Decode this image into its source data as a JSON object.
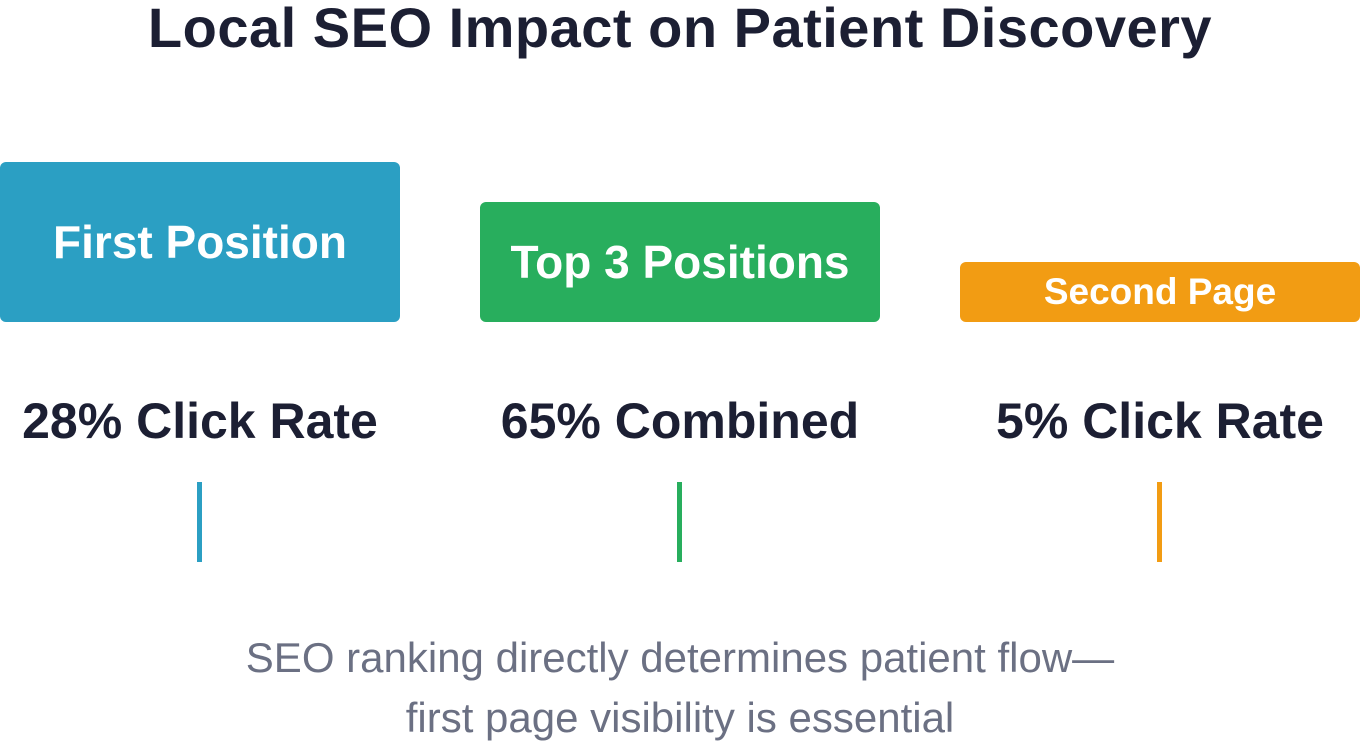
{
  "title": "Local SEO Impact on Patient Discovery",
  "tiers": [
    {
      "label": "First Position",
      "stat": "28% Click Rate",
      "color": "#2b9fc3"
    },
    {
      "label": "Top 3 Positions",
      "stat": "65% Combined",
      "color": "#28ae5d"
    },
    {
      "label": "Second Page",
      "stat": "5% Click Rate",
      "color": "#f29c13"
    }
  ],
  "caption": {
    "line1": "SEO ranking directly determines patient flow—",
    "line2": "first page visibility is essential"
  }
}
